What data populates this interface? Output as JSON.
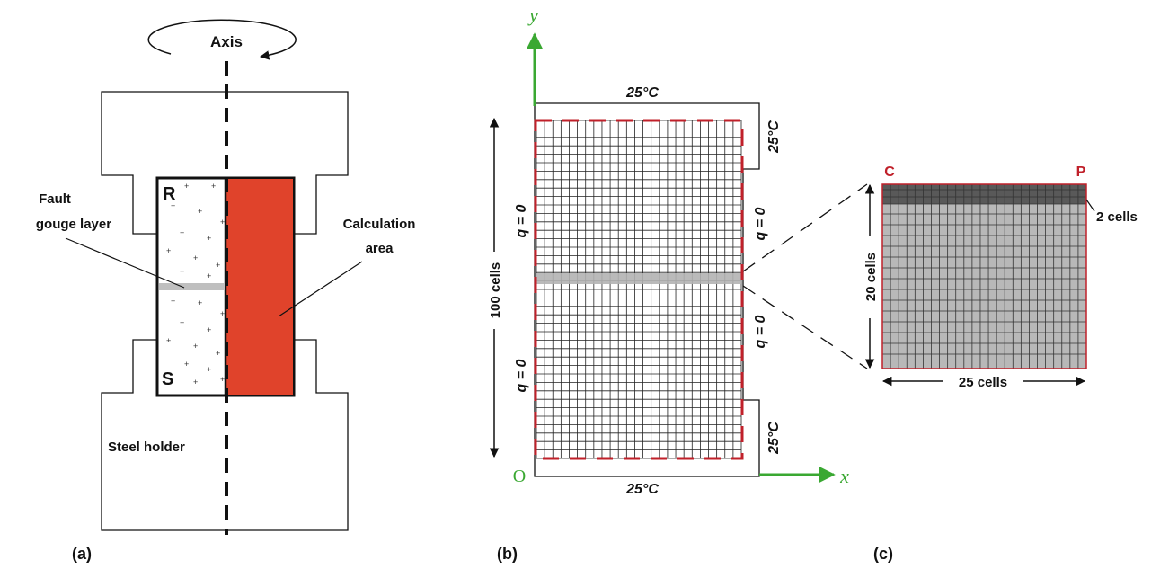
{
  "panel_a": {
    "caption": "(a)",
    "axis_label": "Axis",
    "fault_label_line1": "Fault",
    "fault_label_line2": "gouge layer",
    "calc_label_line1": "Calculation",
    "calc_label_line2": "area",
    "letter_r": "R",
    "letter_s": "S",
    "holder_label": "Steel holder"
  },
  "panel_b": {
    "caption": "(b)",
    "axis_y": "y",
    "axis_x": "x",
    "origin": "O",
    "temp_top": "25°C",
    "temp_bottom": "25°C",
    "temp_right_top": "25°C",
    "temp_right_bottom": "25°C",
    "q_left_top": "q = 0",
    "q_left_bottom": "q = 0",
    "q_right_top": "q = 0",
    "q_right_bottom": "q = 0",
    "height_cells": "100 cells",
    "colors": {
      "boundary": "#c0202a",
      "axis": "#3aa832",
      "band": "#b3b3b3"
    }
  },
  "panel_c": {
    "caption": "(c)",
    "label_c": "C",
    "label_p": "P",
    "two_cells": "2 cells",
    "height_cells": "20 cells",
    "width_cells": "25 cells",
    "colors": {
      "dark": "#595959",
      "light": "#b8b8b8",
      "border": "#c0202a"
    }
  },
  "colors": {
    "calc_area": "#e0432b",
    "gouge": "#bfbfbf"
  }
}
